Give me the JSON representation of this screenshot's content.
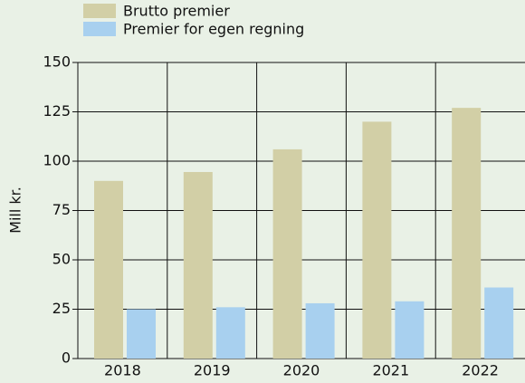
{
  "chart_data": {
    "type": "bar",
    "y_label": "Mill kr.",
    "categories": [
      "2018",
      "2019",
      "2020",
      "2021",
      "2022"
    ],
    "series": [
      {
        "name": "Brutto premier",
        "color": "#d2cfa6",
        "values": [
          90,
          94.5,
          106,
          120,
          127
        ]
      },
      {
        "name": "Premier for egen regning",
        "color": "#a8d0ef",
        "values": [
          25,
          26,
          28,
          29,
          36
        ]
      }
    ],
    "ylim": [
      0,
      150
    ],
    "yticks": [
      0,
      25,
      50,
      75,
      100,
      125,
      150
    ],
    "grid": true
  }
}
